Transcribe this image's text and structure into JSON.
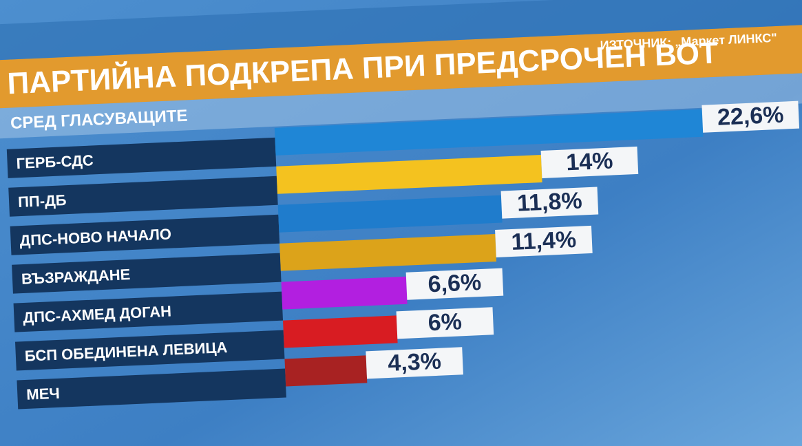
{
  "chart_data": {
    "type": "bar",
    "title": "ПАРТИЙНА ПОДКРЕПА ПРИ ПРЕДСРОЧЕН ВОТ",
    "source": "ИЗТОЧНИК: „Маркет ЛИНКС\"",
    "subtitle": "СРЕД ГЛАСУВАЩИТЕ",
    "categories": [
      "ГЕРБ-СДС",
      "ПП-ДБ",
      "ДПС-НОВО НАЧАЛО",
      "ВЪЗРАЖДАНЕ",
      "ДПС-АХМЕД ДОГАН",
      "БСП ОБЕДИНЕНА ЛЕВИЦА",
      "МЕЧ"
    ],
    "values": [
      22.6,
      14,
      11.8,
      11.4,
      6.6,
      6,
      4.3
    ],
    "value_labels": [
      "22,6%",
      "14%",
      "11,8%",
      "11,4%",
      "6,6%",
      "6%",
      "4,3%"
    ],
    "colors": [
      "#1f86d6",
      "#f4c21f",
      "#1f7ccc",
      "#dca31a",
      "#b21fe0",
      "#d81c22",
      "#a82222"
    ]
  }
}
